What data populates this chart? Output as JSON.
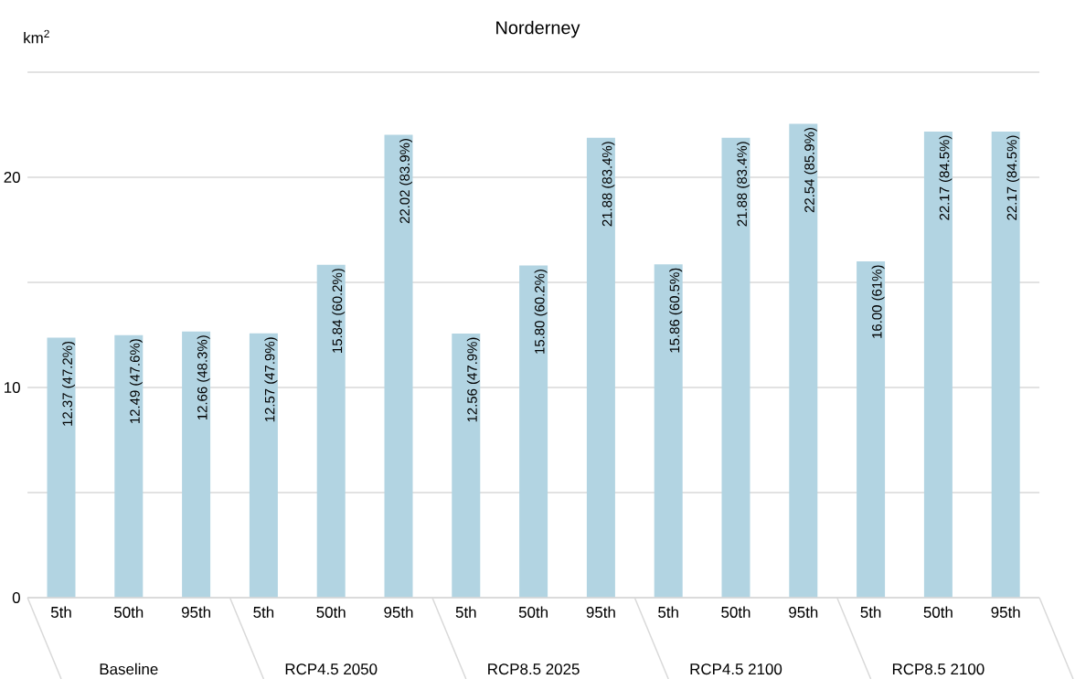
{
  "chart_data": {
    "type": "bar",
    "title": "Norderney",
    "ylabel": "km$^{2}$",
    "categories": [
      "5th",
      "50th",
      "95th",
      "5th",
      "50th",
      "95th",
      "5th",
      "50th",
      "95th",
      "5th",
      "50th",
      "95th",
      "5th",
      "50th",
      "95th"
    ],
    "values": [
      12.37,
      12.49,
      12.66,
      12.57,
      15.84,
      22.02,
      12.56,
      15.8,
      21.88,
      15.86,
      21.88,
      22.54,
      16.0,
      22.17,
      22.17
    ],
    "value_labels": [
      "12.37 (47.2%)",
      "12.49 (47.6%)",
      "12.66 (48.3%)",
      "12.57 (47.9%)",
      "15.84 (60.2%)",
      "22.02 (83.9%)",
      "12.56 (47.9%)",
      "15.80 (60.2%)",
      "21.88 (83.4%)",
      "15.86 (60.5%)",
      "21.88 (83.4%)",
      "22.54 (85.9%)",
      "16.00 (61%)",
      "22.17 (84.5%)",
      "22.17 (84.5%)"
    ],
    "color": "#b2d4e2",
    "ylim": [
      0,
      25
    ],
    "yticks": [
      0,
      {
        "value": 5,
        "label": null
      },
      10,
      {
        "value": 15,
        "label": null
      },
      20,
      {
        "value": 25,
        "label": null
      }
    ],
    "grid": "y",
    "annotations": [
      "Baseline",
      "RCP4.5 2050",
      "RCP8.5 2025",
      "RCP4.5 2100",
      "RCP8.5 2100"
    ]
  }
}
